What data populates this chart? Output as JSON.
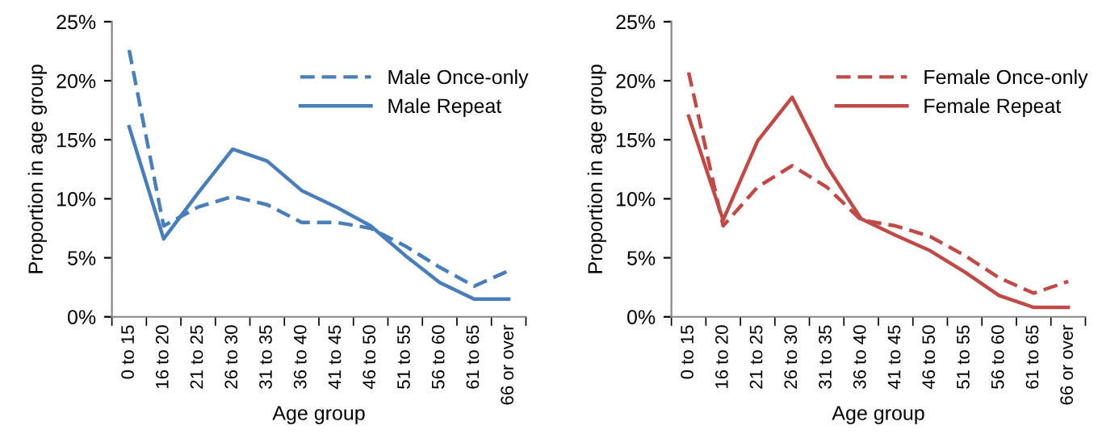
{
  "chart_data": [
    {
      "type": "line",
      "xlabel": "Age group",
      "ylabel": "Proportion in age group",
      "categories": [
        "0 to 15",
        "16 to 20",
        "21 to 25",
        "26 to 30",
        "31 to 35",
        "36 to 40",
        "41 to 45",
        "46 to 50",
        "51 to 55",
        "56 to 60",
        "61 to 65",
        "66 or over"
      ],
      "series": [
        {
          "name": "Male Once-only",
          "color": "#4a7ebb",
          "line_style": "dashed",
          "values": [
            22.6,
            7.7,
            9.3,
            10.2,
            9.5,
            8.0,
            8.0,
            7.5,
            6.0,
            4.2,
            2.6,
            3.9
          ]
        },
        {
          "name": "Male Repeat",
          "color": "#4a7ebb",
          "line_style": "solid",
          "values": [
            16.1,
            6.6,
            10.5,
            14.2,
            13.2,
            10.7,
            9.3,
            7.7,
            5.2,
            2.9,
            1.5,
            1.5
          ]
        }
      ],
      "ylim": [
        0,
        25
      ],
      "yticks": [
        {
          "value": 0,
          "label": "0%"
        },
        {
          "value": 5,
          "label": "5%"
        },
        {
          "value": 10,
          "label": "10%"
        },
        {
          "value": 15,
          "label": "15%"
        },
        {
          "value": 20,
          "label": "20%"
        },
        {
          "value": 25,
          "label": "25%"
        }
      ],
      "grid": false,
      "legend": "top right",
      "marker": "none"
    },
    {
      "type": "line",
      "xlabel": "Age group",
      "ylabel": "Proportion in age group",
      "categories": [
        "0 to 15",
        "16 to 20",
        "21 to 25",
        "26 to 30",
        "31 to 35",
        "36 to 40",
        "41 to 45",
        "46 to 50",
        "51 to 55",
        "56 to 60",
        "61 to 65",
        "66 or over"
      ],
      "series": [
        {
          "name": "Female Once-only",
          "color": "#be4b48",
          "line_style": "dashed",
          "values": [
            20.7,
            7.7,
            11.0,
            12.8,
            11.0,
            8.2,
            7.7,
            6.8,
            5.2,
            3.3,
            2.0,
            3.0
          ]
        },
        {
          "name": "Female Repeat",
          "color": "#be4b48",
          "line_style": "solid",
          "values": [
            17.0,
            8.2,
            14.9,
            18.6,
            12.8,
            8.3,
            6.9,
            5.6,
            3.8,
            1.8,
            0.8,
            0.8
          ]
        }
      ],
      "ylim": [
        0,
        25
      ],
      "yticks": [
        {
          "value": 0,
          "label": "0%"
        },
        {
          "value": 5,
          "label": "5%"
        },
        {
          "value": 10,
          "label": "10%"
        },
        {
          "value": 15,
          "label": "15%"
        },
        {
          "value": 20,
          "label": "20%"
        },
        {
          "value": 25,
          "label": "25%"
        }
      ],
      "grid": false,
      "legend": "top right",
      "marker": "none"
    }
  ]
}
